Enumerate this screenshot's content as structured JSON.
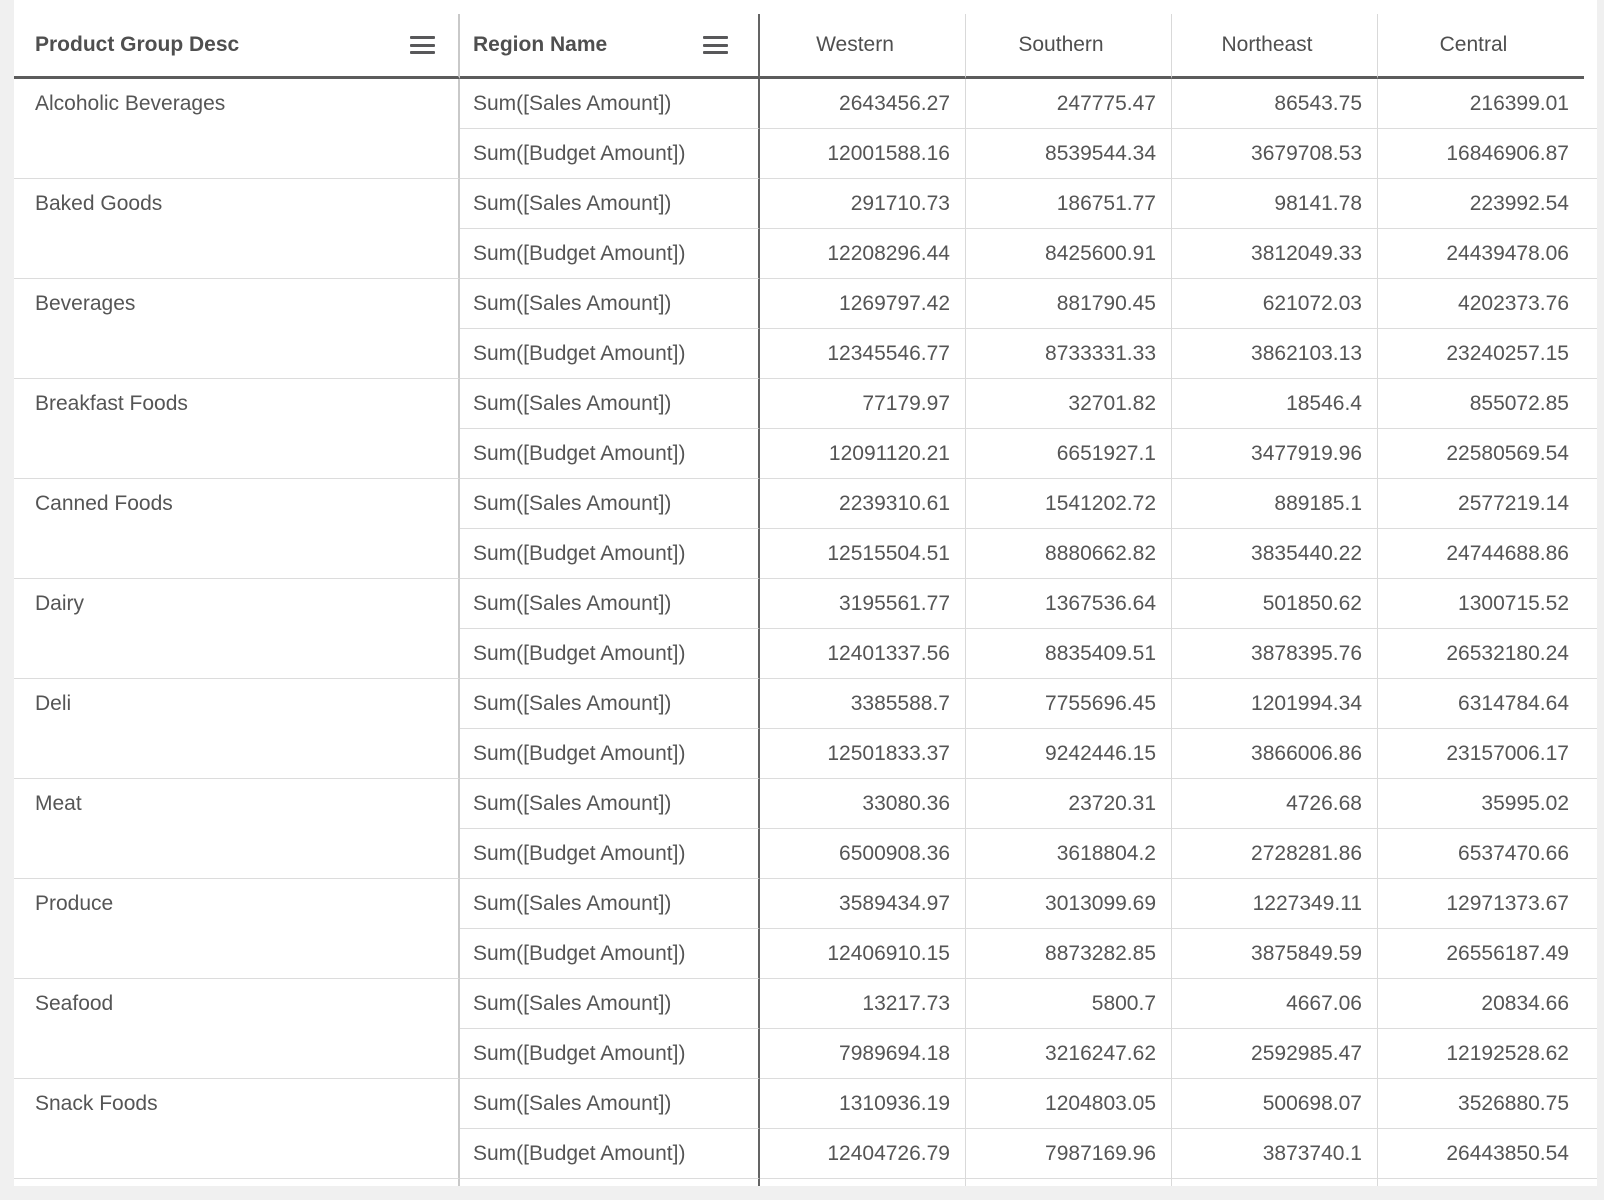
{
  "table": {
    "header": {
      "product_group_label": "Product Group Desc",
      "region_name_label": "Region Name",
      "value_columns": [
        "Western",
        "Southern",
        "Northeast",
        "Central"
      ]
    },
    "measures": [
      "Sum([Sales Amount])",
      "Sum([Budget Amount])"
    ],
    "groups": [
      {
        "name": "Alcoholic Beverages",
        "rows": [
          {
            "measure": "Sum([Sales Amount])",
            "values": [
              "2643456.27",
              "247775.47",
              "86543.75",
              "216399.01"
            ]
          },
          {
            "measure": "Sum([Budget Amount])",
            "values": [
              "12001588.16",
              "8539544.34",
              "3679708.53",
              "16846906.87"
            ]
          }
        ]
      },
      {
        "name": "Baked Goods",
        "rows": [
          {
            "measure": "Sum([Sales Amount])",
            "values": [
              "291710.73",
              "186751.77",
              "98141.78",
              "223992.54"
            ]
          },
          {
            "measure": "Sum([Budget Amount])",
            "values": [
              "12208296.44",
              "8425600.91",
              "3812049.33",
              "24439478.06"
            ]
          }
        ]
      },
      {
        "name": "Beverages",
        "rows": [
          {
            "measure": "Sum([Sales Amount])",
            "values": [
              "1269797.42",
              "881790.45",
              "621072.03",
              "4202373.76"
            ]
          },
          {
            "measure": "Sum([Budget Amount])",
            "values": [
              "12345546.77",
              "8733331.33",
              "3862103.13",
              "23240257.15"
            ]
          }
        ]
      },
      {
        "name": "Breakfast Foods",
        "rows": [
          {
            "measure": "Sum([Sales Amount])",
            "values": [
              "77179.97",
              "32701.82",
              "18546.4",
              "855072.85"
            ]
          },
          {
            "measure": "Sum([Budget Amount])",
            "values": [
              "12091120.21",
              "6651927.1",
              "3477919.96",
              "22580569.54"
            ]
          }
        ]
      },
      {
        "name": "Canned Foods",
        "rows": [
          {
            "measure": "Sum([Sales Amount])",
            "values": [
              "2239310.61",
              "1541202.72",
              "889185.1",
              "2577219.14"
            ]
          },
          {
            "measure": "Sum([Budget Amount])",
            "values": [
              "12515504.51",
              "8880662.82",
              "3835440.22",
              "24744688.86"
            ]
          }
        ]
      },
      {
        "name": "Dairy",
        "rows": [
          {
            "measure": "Sum([Sales Amount])",
            "values": [
              "3195561.77",
              "1367536.64",
              "501850.62",
              "1300715.52"
            ]
          },
          {
            "measure": "Sum([Budget Amount])",
            "values": [
              "12401337.56",
              "8835409.51",
              "3878395.76",
              "26532180.24"
            ]
          }
        ]
      },
      {
        "name": "Deli",
        "rows": [
          {
            "measure": "Sum([Sales Amount])",
            "values": [
              "3385588.7",
              "7755696.45",
              "1201994.34",
              "6314784.64"
            ]
          },
          {
            "measure": "Sum([Budget Amount])",
            "values": [
              "12501833.37",
              "9242446.15",
              "3866006.86",
              "23157006.17"
            ]
          }
        ]
      },
      {
        "name": "Meat",
        "rows": [
          {
            "measure": "Sum([Sales Amount])",
            "values": [
              "33080.36",
              "23720.31",
              "4726.68",
              "35995.02"
            ]
          },
          {
            "measure": "Sum([Budget Amount])",
            "values": [
              "6500908.36",
              "3618804.2",
              "2728281.86",
              "6537470.66"
            ]
          }
        ]
      },
      {
        "name": "Produce",
        "rows": [
          {
            "measure": "Sum([Sales Amount])",
            "values": [
              "3589434.97",
              "3013099.69",
              "1227349.11",
              "12971373.67"
            ]
          },
          {
            "measure": "Sum([Budget Amount])",
            "values": [
              "12406910.15",
              "8873282.85",
              "3875849.59",
              "26556187.49"
            ]
          }
        ]
      },
      {
        "name": "Seafood",
        "rows": [
          {
            "measure": "Sum([Sales Amount])",
            "values": [
              "13217.73",
              "5800.7",
              "4667.06",
              "20834.66"
            ]
          },
          {
            "measure": "Sum([Budget Amount])",
            "values": [
              "7989694.18",
              "3216247.62",
              "2592985.47",
              "12192528.62"
            ]
          }
        ]
      },
      {
        "name": "Snack Foods",
        "rows": [
          {
            "measure": "Sum([Sales Amount])",
            "values": [
              "1310936.19",
              "1204803.05",
              "500698.07",
              "3526880.75"
            ]
          },
          {
            "measure": "Sum([Budget Amount])",
            "values": [
              "12404726.79",
              "7987169.96",
              "3873740.1",
              "26443850.54"
            ]
          }
        ]
      }
    ]
  },
  "colors": {
    "page_background": "#f0f0f0",
    "panel_background": "#ffffff",
    "header_rule": "#5c5c5c",
    "region_column_divider": "#646464",
    "group_column_divider": "#c9c9c9",
    "grid_line": "#dcdcdc",
    "text": "#555555",
    "icon": "#58585a"
  }
}
